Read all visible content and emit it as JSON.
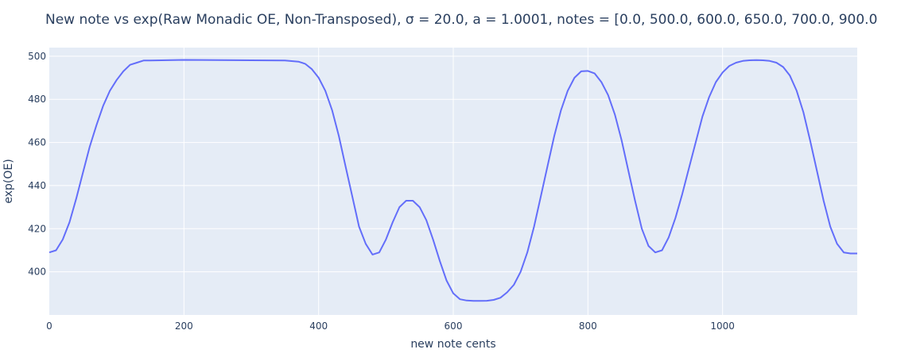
{
  "chart_data": {
    "type": "line",
    "title": "New note vs exp(Raw Monadic OE, Non-Transposed), σ = 20.0, a = 1.0001, notes = [0.0, 500.0, 600.0, 650.0, 700.0, 900.0",
    "xlabel": "new note cents",
    "ylabel": "exp(OE)",
    "xlim": [
      0,
      1200
    ],
    "ylim": [
      380,
      504
    ],
    "xticks": [
      0,
      200,
      400,
      600,
      800,
      1000
    ],
    "yticks": [
      400,
      420,
      440,
      460,
      480,
      500
    ],
    "grid": true,
    "line_color": "#636efa",
    "plot_bg": "#e5ecf6",
    "series": [
      {
        "x": [
          0,
          10,
          20,
          30,
          40,
          50,
          60,
          70,
          80,
          90,
          100,
          110,
          120,
          130,
          140,
          150,
          200,
          250,
          300,
          350,
          370,
          380,
          390,
          400,
          410,
          420,
          430,
          440,
          450,
          460,
          470,
          480,
          490,
          500,
          510,
          520,
          530,
          540,
          550,
          560,
          570,
          580,
          590,
          600,
          610,
          620,
          630,
          640,
          650,
          660,
          670,
          680,
          690,
          700,
          710,
          720,
          730,
          740,
          750,
          760,
          770,
          780,
          790,
          800,
          810,
          820,
          830,
          840,
          850,
          860,
          870,
          880,
          890,
          900,
          910,
          920,
          930,
          940,
          950,
          960,
          970,
          980,
          990,
          1000,
          1010,
          1020,
          1030,
          1040,
          1050,
          1060,
          1070,
          1080,
          1090,
          1100,
          1110,
          1120,
          1130,
          1140,
          1150,
          1160,
          1170,
          1180,
          1190,
          1200
        ],
        "values": [
          409,
          410,
          415,
          423,
          434,
          446,
          458,
          468,
          477,
          484,
          489,
          493,
          496,
          497,
          498,
          498,
          498.3,
          498.2,
          498.1,
          498,
          497.5,
          496.5,
          494,
          490,
          484,
          475,
          463,
          449,
          435,
          421,
          413,
          408,
          409,
          415,
          423,
          430,
          433,
          433,
          430,
          424,
          415,
          405,
          396,
          390,
          387.3,
          386.7,
          386.5,
          386.5,
          386.6,
          387,
          388,
          390.5,
          394,
          400,
          409,
          421,
          435,
          449,
          463,
          475,
          484,
          490,
          493,
          493.2,
          492,
          488,
          482,
          473,
          461,
          447,
          433,
          420,
          412,
          409,
          410,
          416,
          425,
          436,
          448,
          460,
          472,
          481,
          488,
          492.5,
          495.5,
          497,
          497.8,
          498.1,
          498.2,
          498.1,
          497.8,
          497,
          495,
          491,
          484,
          474,
          461,
          447,
          433,
          421,
          413,
          409,
          408.5,
          408.5
        ]
      }
    ]
  }
}
